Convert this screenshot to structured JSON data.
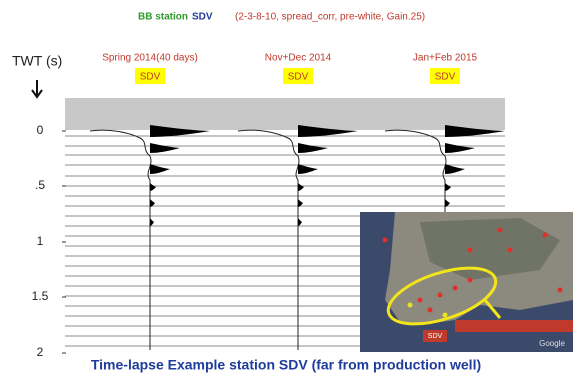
{
  "header": {
    "station_label": "BB station",
    "station": "SDV",
    "params": "(2-3-8-10, spread_corr, pre-white, Gain.25)"
  },
  "y_axis": {
    "label": "TWT (s)",
    "ticks": [
      "0",
      ".5",
      "1",
      "1.5",
      "2"
    ]
  },
  "panels": [
    {
      "title": "Spring 2014(40 days)",
      "badge": "SDV"
    },
    {
      "title": "Nov+Dec 2014",
      "badge": "SDV"
    },
    {
      "title": "Jan+Feb 2015",
      "badge": "SDV"
    }
  ],
  "map": {
    "marker": "SDV",
    "credit": "Google"
  },
  "caption": "Time-lapse Example station SDV (far from  production well)"
}
